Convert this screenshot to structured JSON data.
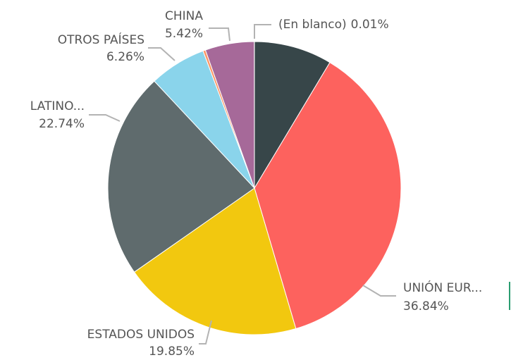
{
  "chart_data": {
    "type": "pie",
    "categories": [
      null,
      "UNIÓN EUR...",
      "ESTADOS UNIDOS",
      "LATINO...",
      "OTROS PAÍSES",
      null,
      "CHINA",
      "(En blanco)"
    ],
    "values": [
      8.6,
      36.84,
      19.85,
      22.74,
      6.26,
      0.28,
      5.42,
      0.01
    ],
    "value_labels": [
      null,
      "36.84%",
      "19.85%",
      "22.74%",
      "6.26%",
      null,
      "5.42%",
      "0.01%"
    ],
    "colors": [
      "#374649",
      "#fd625e",
      "#f2c80f",
      "#5f6b6d",
      "#8ad4eb",
      "#fe9666",
      "#a66999",
      "#3599b8"
    ]
  }
}
